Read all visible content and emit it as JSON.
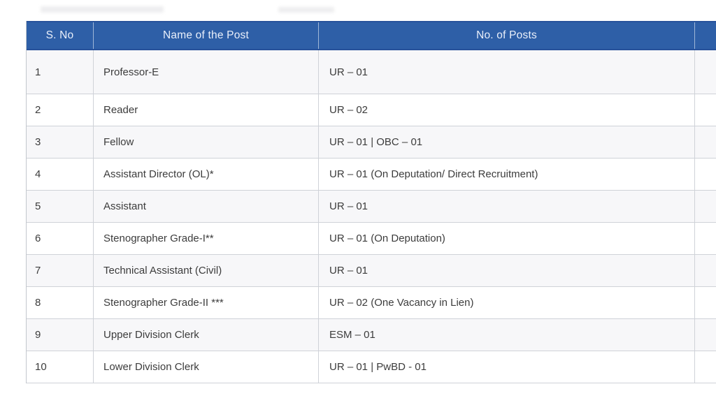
{
  "table": {
    "columns": [
      "S. No",
      "Name of the Post",
      "No. of Posts"
    ],
    "rows": [
      {
        "sno": "1",
        "name": "Professor-E",
        "posts": "UR – 01"
      },
      {
        "sno": "2",
        "name": "Reader",
        "posts": "UR – 02"
      },
      {
        "sno": "3",
        "name": "Fellow",
        "posts": "UR – 01 | OBC – 01"
      },
      {
        "sno": "4",
        "name": "Assistant Director (OL)*",
        "posts": "UR – 01 (On Deputation/ Direct Recruitment)"
      },
      {
        "sno": "5",
        "name": "Assistant",
        "posts": "UR – 01"
      },
      {
        "sno": "6",
        "name": "Stenographer Grade-I**",
        "posts": "UR – 01 (On Deputation)"
      },
      {
        "sno": "7",
        "name": "Technical Assistant (Civil)",
        "posts": "UR – 01"
      },
      {
        "sno": "8",
        "name": "Stenographer Grade-II ***",
        "posts": "UR – 02 (One  Vacancy in Lien)"
      },
      {
        "sno": "9",
        "name": "Upper Division Clerk",
        "posts": "ESM – 01"
      },
      {
        "sno": "10",
        "name": "Lower Division Clerk",
        "posts": "UR – 01 | PwBD - 01"
      }
    ]
  },
  "colors": {
    "header_bg": "#2e5fa7",
    "header_text": "#e9effa",
    "row_alt": "#f7f7f9",
    "row_plain": "#ffffff",
    "border": "#cfd2d8",
    "text": "#3c3c3c"
  }
}
